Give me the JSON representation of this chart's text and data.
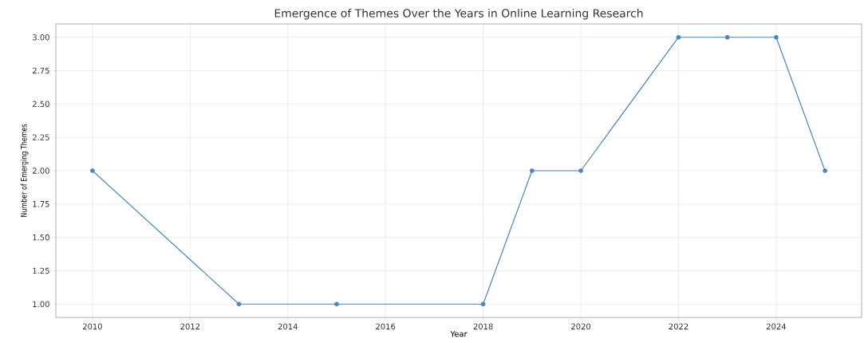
{
  "chart_data": {
    "type": "line",
    "title": "Emergence of Themes Over the Years in Online Learning Research",
    "xlabel": "Year",
    "ylabel": "Number of Emerging Themes",
    "x": [
      2010,
      2013,
      2015,
      2018,
      2019,
      2020,
      2022,
      2023,
      2024,
      2025
    ],
    "values": [
      2,
      1,
      1,
      1,
      2,
      2,
      3,
      3,
      3,
      2
    ],
    "color": "#4a86c0",
    "marker": "circle",
    "line_style": "solid",
    "grid": true,
    "xlim": [
      2009.25,
      2025.75
    ],
    "xticks": [
      2010,
      2012,
      2014,
      2016,
      2018,
      2020,
      2022,
      2024
    ],
    "ylim": [
      0.9,
      3.1
    ],
    "yticks": [
      {
        "value": 1,
        "label": "1.00"
      },
      {
        "value": 1.25,
        "label": "1.25"
      },
      {
        "value": 1.5,
        "label": "1.50"
      },
      {
        "value": 1.75,
        "label": "1.75"
      },
      {
        "value": 2,
        "label": "2.00"
      },
      {
        "value": 2.25,
        "label": "2.25"
      },
      {
        "value": 2.5,
        "label": "2.50"
      },
      {
        "value": 2.75,
        "label": "2.75"
      },
      {
        "value": 3,
        "label": "3.00"
      }
    ]
  }
}
